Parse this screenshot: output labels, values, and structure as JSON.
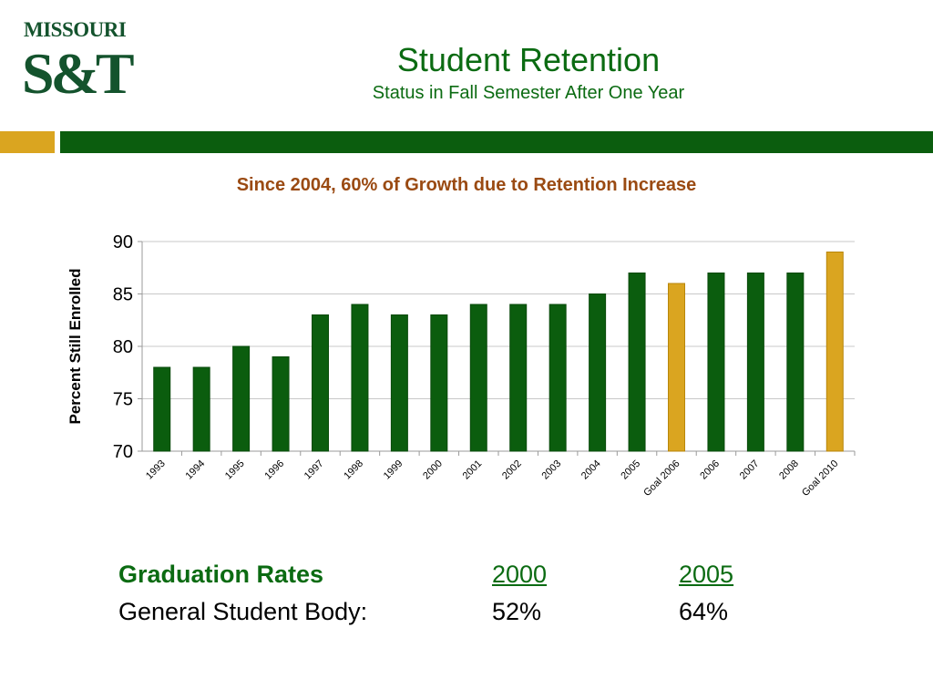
{
  "logo": {
    "wordmark": "MISSOURI",
    "mark": "S&T"
  },
  "slide": {
    "title": "Student Retention",
    "subtitle": "Status in Fall Semester After One Year"
  },
  "colors": {
    "actual": "#0b5d0e",
    "goal": "#daa520",
    "title_green": "#0b6b12",
    "chart_title": "#9a4a12"
  },
  "chart_data": {
    "type": "bar",
    "title": "Since 2004, 60% of Growth due to Retention Increase",
    "xlabel": "",
    "ylabel": "Percent Still Enrolled",
    "ylim": [
      70,
      90
    ],
    "yticks": [
      70,
      75,
      80,
      85,
      90
    ],
    "grid": true,
    "categories": [
      "1993",
      "1994",
      "1995",
      "1996",
      "1997",
      "1998",
      "1999",
      "2000",
      "2001",
      "2002",
      "2003",
      "2004",
      "2005",
      "Goal 2006",
      "2006",
      "2007",
      "2008",
      "Goal 2010"
    ],
    "values": [
      78,
      78,
      80,
      79,
      83,
      84,
      83,
      83,
      84,
      84,
      84,
      85,
      87,
      86,
      87,
      87,
      87,
      89
    ],
    "bar_kinds": [
      "actual",
      "actual",
      "actual",
      "actual",
      "actual",
      "actual",
      "actual",
      "actual",
      "actual",
      "actual",
      "actual",
      "actual",
      "actual",
      "goal",
      "actual",
      "actual",
      "actual",
      "goal"
    ]
  },
  "graduation": {
    "heading": "Graduation Rates",
    "years": [
      "2000",
      "2005"
    ],
    "row_label": "General Student Body:",
    "row_values": [
      "52%",
      "64%"
    ]
  }
}
